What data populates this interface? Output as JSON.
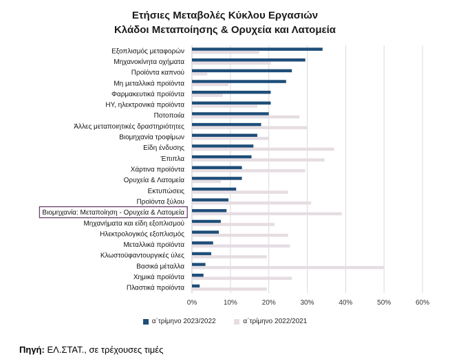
{
  "colors": {
    "series_current": "#1f4e79",
    "series_previous": "#e6dde3",
    "grid": "#d9d9d9",
    "highlight_box": "#6b3f6e"
  },
  "source": {
    "label": "Πηγή:",
    "text": " ΕΛ.ΣΤΑΤ., σε τρέχουσες τιμές"
  },
  "chart_data": {
    "type": "bar",
    "orientation": "horizontal",
    "title_line1": "Ετήσιες Μεταβολές Κύκλου Εργασιών",
    "title_line2": "Κλάδοι Μεταποίησης & Ορυχεία και Λατομεία",
    "categories": [
      "Εξοπλισμός μεταφορών",
      "Μηχανοκίνητα οχήματα",
      "Προϊόντα καπνού",
      "Μη μεταλλικά προϊόντα",
      "Φαρμακευτικά προϊόντα",
      "ΗΥ, ηλεκτρονικά προϊόντα",
      "Ποτοποιία",
      "Άλλες μεταποιητικές δραστηριότητες",
      "Βιομηχανία τροφίμων",
      "Είδη ένδυσης",
      "Έπιπλα",
      "Χάρτινα προϊόντα",
      "Ορυχεία & Λατομεία",
      "Εκτυπώσεις",
      "Προϊόντα ξύλου",
      "Βιομηχανία: Μεταποίηση - Ορυχεία & Λατομεία",
      "Μηχανήματα και είδη εξοπλισμού",
      "Ηλεκτρολογικός εξοπλισμός",
      "Μεταλλικά προϊόντα",
      "Κλωστοϋφαντουργικές ύλες",
      "Βασικά μέταλλα",
      "Χημικά προϊόντα",
      "Πλαστικά προϊόντα"
    ],
    "highlighted_category": "Βιομηχανία: Μεταποίηση - Ορυχεία & Λατομεία",
    "series": [
      {
        "name": "α΄τρίμηνο 2023/2022",
        "values": [
          34,
          29.5,
          26,
          24.5,
          20.5,
          20.5,
          20,
          18,
          17,
          16,
          15.5,
          13,
          13,
          11.5,
          9.5,
          9,
          7.5,
          7,
          5.5,
          5,
          3.5,
          3,
          2
        ]
      },
      {
        "name": "α΄τρίμηνο 2022/2021",
        "values": [
          17.5,
          20.5,
          4,
          9.5,
          8,
          17,
          28,
          30,
          20,
          37,
          34.5,
          29.5,
          7.5,
          25,
          31,
          39,
          21.5,
          25,
          25.5,
          19.5,
          50,
          26,
          19.5
        ]
      }
    ],
    "x_ticks": [
      "0%",
      "10%",
      "20%",
      "30%",
      "40%",
      "50%",
      "60%"
    ],
    "xlim": [
      0,
      60
    ],
    "unit": "%",
    "grid": "vertical",
    "legend_position": "bottom"
  }
}
